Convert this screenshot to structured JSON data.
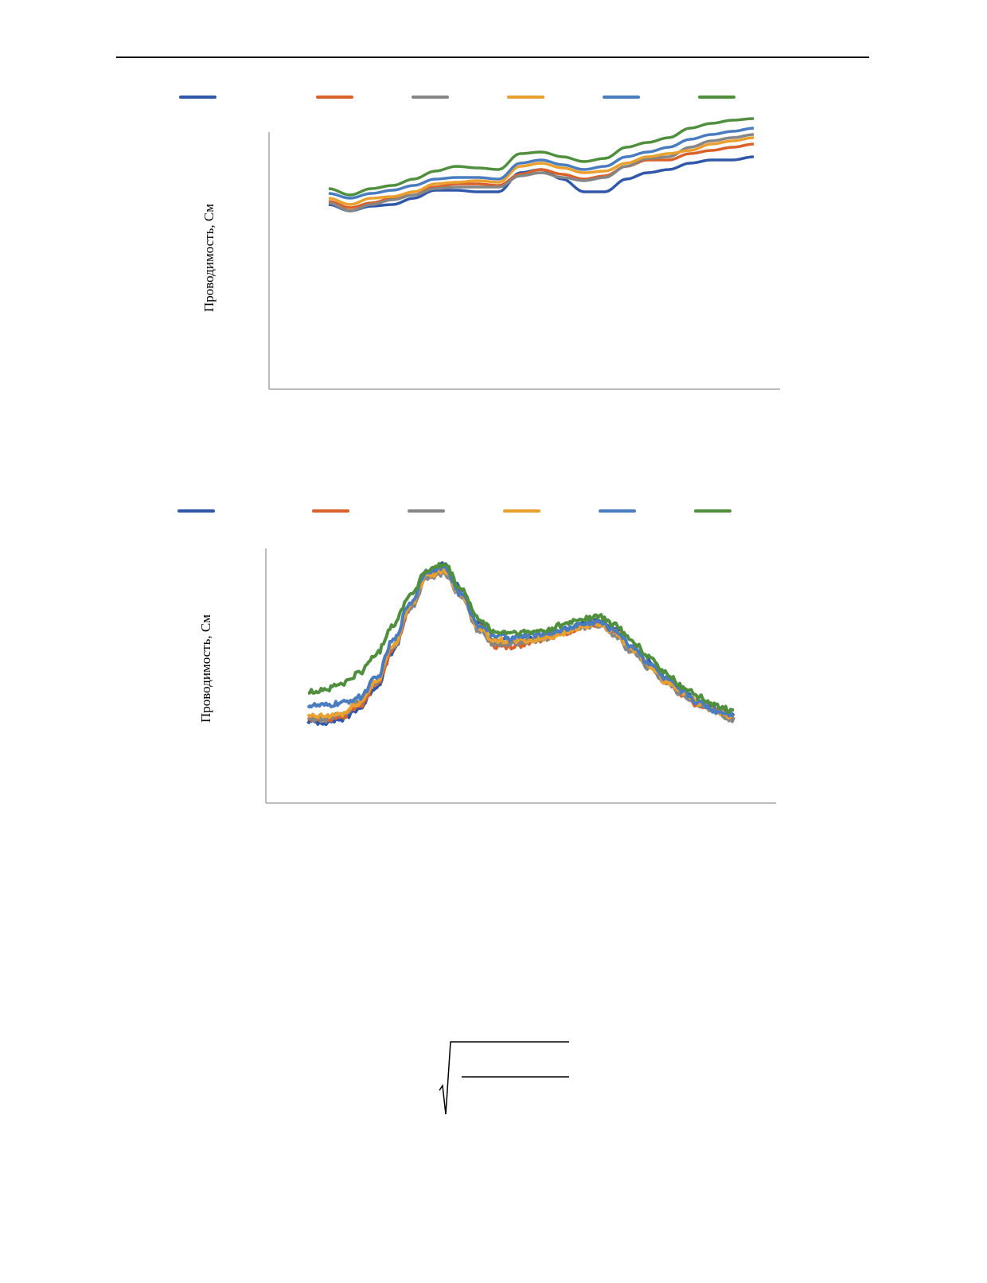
{
  "charts": [
    {
      "ylabel": "Проводимость, См"
    },
    {
      "ylabel": "Проводимость, См"
    }
  ],
  "colors": [
    "#3158a8",
    "#d9622b",
    "#868686",
    "#eaa02e",
    "#4a7cc0",
    "#4f8f3e"
  ],
  "chart_data": [
    {
      "type": "line",
      "title": "",
      "xlabel": "",
      "ylabel": "Проводимость, См",
      "grid": false,
      "legend": "top",
      "x": [
        0,
        0.05,
        0.1,
        0.15,
        0.2,
        0.25,
        0.3,
        0.35,
        0.4,
        0.45,
        0.5,
        0.55,
        0.6,
        0.65,
        0.7,
        0.75,
        0.8,
        0.85,
        0.9,
        0.95,
        1.0
      ],
      "ylim": [
        0,
        1
      ],
      "series": [
        {
          "color": "#3158a8",
          "values": [
            0.58,
            0.56,
            0.575,
            0.58,
            0.6,
            0.625,
            0.625,
            0.62,
            0.62,
            0.68,
            0.69,
            0.66,
            0.62,
            0.62,
            0.66,
            0.68,
            0.69,
            0.71,
            0.72,
            0.72,
            0.73
          ]
        },
        {
          "color": "#d9622b",
          "values": [
            0.59,
            0.57,
            0.585,
            0.6,
            0.62,
            0.635,
            0.645,
            0.645,
            0.64,
            0.675,
            0.69,
            0.675,
            0.66,
            0.67,
            0.7,
            0.72,
            0.72,
            0.74,
            0.75,
            0.76,
            0.77
          ]
        },
        {
          "color": "#868686",
          "values": [
            0.585,
            0.56,
            0.58,
            0.595,
            0.61,
            0.63,
            0.635,
            0.635,
            0.635,
            0.67,
            0.68,
            0.665,
            0.655,
            0.665,
            0.7,
            0.725,
            0.73,
            0.76,
            0.78,
            0.79,
            0.8
          ]
        },
        {
          "color": "#eaa02e",
          "values": [
            0.6,
            0.58,
            0.6,
            0.605,
            0.62,
            0.645,
            0.65,
            0.655,
            0.65,
            0.7,
            0.71,
            0.695,
            0.68,
            0.685,
            0.71,
            0.73,
            0.74,
            0.75,
            0.77,
            0.78,
            0.79
          ]
        },
        {
          "color": "#4a7cc0",
          "values": [
            0.615,
            0.6,
            0.615,
            0.625,
            0.64,
            0.66,
            0.665,
            0.665,
            0.66,
            0.71,
            0.72,
            0.705,
            0.69,
            0.7,
            0.73,
            0.745,
            0.76,
            0.785,
            0.8,
            0.81,
            0.82
          ]
        },
        {
          "color": "#4f8f3e",
          "values": [
            0.63,
            0.61,
            0.63,
            0.64,
            0.66,
            0.685,
            0.7,
            0.695,
            0.69,
            0.74,
            0.745,
            0.73,
            0.715,
            0.725,
            0.76,
            0.775,
            0.79,
            0.82,
            0.835,
            0.845,
            0.85
          ]
        }
      ]
    },
    {
      "type": "line",
      "title": "",
      "xlabel": "",
      "ylabel": "Проводимость, См",
      "grid": false,
      "legend": "top",
      "x": [
        0,
        0.04,
        0.08,
        0.12,
        0.16,
        0.2,
        0.24,
        0.28,
        0.32,
        0.36,
        0.4,
        0.44,
        0.48,
        0.52,
        0.56,
        0.6,
        0.64,
        0.68,
        0.72,
        0.76,
        0.8,
        0.84,
        0.88,
        0.92,
        0.96,
        1.0
      ],
      "ylim": [
        0,
        1
      ],
      "series": [
        {
          "color": "#3158a8",
          "values": [
            0.3,
            0.3,
            0.31,
            0.35,
            0.43,
            0.56,
            0.72,
            0.85,
            0.88,
            0.79,
            0.66,
            0.6,
            0.6,
            0.61,
            0.62,
            0.64,
            0.66,
            0.67,
            0.64,
            0.58,
            0.52,
            0.46,
            0.41,
            0.37,
            0.35,
            0.32
          ]
        },
        {
          "color": "#d9622b",
          "values": [
            0.31,
            0.31,
            0.32,
            0.36,
            0.44,
            0.57,
            0.72,
            0.84,
            0.86,
            0.77,
            0.65,
            0.58,
            0.58,
            0.59,
            0.61,
            0.63,
            0.65,
            0.66,
            0.63,
            0.57,
            0.51,
            0.45,
            0.4,
            0.36,
            0.34,
            0.31
          ]
        },
        {
          "color": "#868686",
          "values": [
            0.31,
            0.31,
            0.33,
            0.37,
            0.45,
            0.58,
            0.72,
            0.83,
            0.85,
            0.76,
            0.64,
            0.59,
            0.59,
            0.6,
            0.61,
            0.63,
            0.65,
            0.66,
            0.62,
            0.56,
            0.5,
            0.45,
            0.4,
            0.36,
            0.33,
            0.31
          ]
        },
        {
          "color": "#eaa02e",
          "values": [
            0.32,
            0.32,
            0.33,
            0.37,
            0.45,
            0.58,
            0.73,
            0.84,
            0.86,
            0.77,
            0.65,
            0.6,
            0.6,
            0.6,
            0.61,
            0.63,
            0.65,
            0.66,
            0.63,
            0.57,
            0.51,
            0.45,
            0.41,
            0.37,
            0.34,
            0.32
          ]
        },
        {
          "color": "#4a7cc0",
          "values": [
            0.36,
            0.36,
            0.37,
            0.39,
            0.46,
            0.6,
            0.74,
            0.86,
            0.87,
            0.77,
            0.66,
            0.62,
            0.61,
            0.62,
            0.63,
            0.64,
            0.66,
            0.67,
            0.64,
            0.58,
            0.52,
            0.46,
            0.41,
            0.37,
            0.34,
            0.33
          ]
        },
        {
          "color": "#4f8f3e",
          "values": [
            0.41,
            0.42,
            0.44,
            0.48,
            0.55,
            0.66,
            0.77,
            0.86,
            0.88,
            0.79,
            0.68,
            0.63,
            0.63,
            0.63,
            0.64,
            0.66,
            0.68,
            0.69,
            0.66,
            0.6,
            0.54,
            0.48,
            0.43,
            0.39,
            0.36,
            0.34
          ]
        }
      ]
    }
  ]
}
